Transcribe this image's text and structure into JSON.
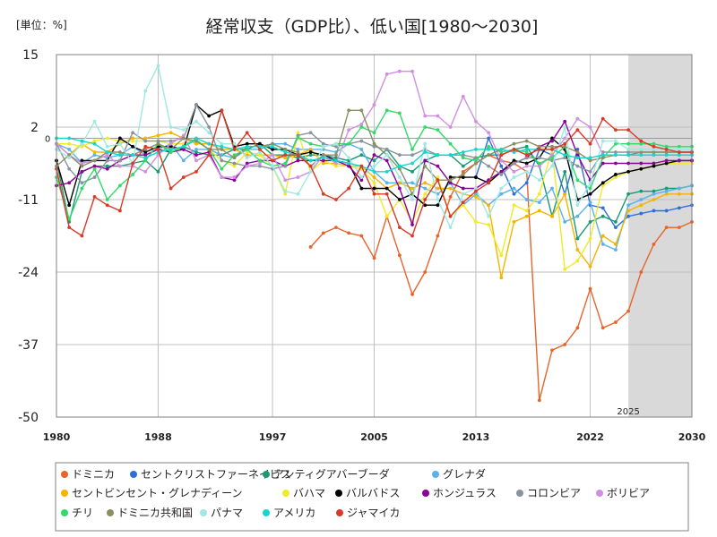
{
  "title": "経常収支（GDP比）、低い国[1980～2030]",
  "unit_label": "[単位：%]",
  "colors": {
    "grid": "#bfbfbf",
    "forecast_shade": "#d9d9d9",
    "zero_line": "#999999"
  },
  "chart_data": {
    "type": "line",
    "title": "経常収支（GDP比）、低い国[1980～2030]",
    "ylabel": "[単位：%]",
    "xlim": [
      1980,
      2030
    ],
    "ylim": [
      -50,
      15
    ],
    "yticks": [
      "15",
      "2",
      "-11",
      "-24",
      "-37",
      "-50"
    ],
    "xticks": [
      "1980",
      "1988",
      "1997",
      "2005",
      "2013",
      "2022",
      "2030"
    ],
    "zero_label": "0",
    "forecast_start": 2025,
    "forecast_label": "2025",
    "legend_position": "bottom",
    "grid": true,
    "series": [
      {
        "name": "ドミニカ",
        "color": "#e8642a",
        "start": 2000,
        "values": [
          -19.5,
          -17,
          -16,
          -17,
          -17.5,
          -21.5,
          -14,
          -21,
          -28,
          -24,
          -17.5,
          -10.5,
          -6,
          -4.5,
          -3,
          -4,
          -4.5,
          -6,
          -47,
          -38,
          -37,
          -34,
          -27,
          -34,
          -33,
          -31,
          -24,
          -19,
          -16,
          -16,
          -15
        ]
      },
      {
        "name": "セントクリストファーネイビス",
        "color": "#2f6fdc",
        "start": 2013,
        "values": [
          -7,
          0,
          -5,
          -10,
          -8,
          -2,
          -3,
          -10,
          -2,
          -12,
          -12.5,
          -16,
          -14,
          -13.5,
          -13,
          -13,
          -12.5,
          -12
        ]
      },
      {
        "name": "アンティグアバーブーダ",
        "color": "#199a72",
        "start": 1980,
        "values": [
          -4,
          -15,
          -6,
          -5,
          -5,
          -5,
          -4.5,
          -4,
          -6,
          -2,
          -1.5,
          -2.5,
          -3,
          -3,
          -2,
          -2,
          -1,
          -3,
          -3,
          -3.5,
          -3,
          -3,
          -3.5,
          -4,
          -3,
          -4,
          -2,
          -5,
          -6,
          -4,
          -3,
          -3,
          -5,
          -3.5,
          -3,
          -3,
          -2,
          -1.5,
          -5,
          -14,
          -6,
          -18,
          -15,
          -14,
          -15,
          -10,
          -9.5,
          -9.5,
          -9,
          -9,
          -8.5
        ]
      },
      {
        "name": "グレナダ",
        "color": "#5ab2e8",
        "start": 1980,
        "values": [
          -1,
          -2,
          -4.5,
          -3,
          -3.5,
          -3,
          -1.5,
          -3,
          -2,
          -1,
          -4,
          -2,
          -2,
          -3,
          -3.5,
          -2,
          -2,
          -1,
          -1,
          -2,
          -2,
          -2,
          -2.5,
          -1,
          -2,
          -6,
          -8,
          -8,
          -8,
          -9,
          -10,
          -8,
          -12,
          -10,
          -12,
          -10,
          -9,
          -11,
          -11.5,
          -9,
          -15,
          -14,
          -11.5,
          -19,
          -20,
          -12,
          -11,
          -10,
          -9.5,
          -9,
          -8.5
        ]
      },
      {
        "name": "セントビンセント・グレナディーン",
        "color": "#f5b400",
        "start": 1980,
        "values": [
          -1,
          -3,
          -1,
          -2.5,
          -2.5,
          -1,
          0,
          0,
          0.5,
          1,
          0,
          -1,
          -1,
          -2,
          -2,
          -3,
          -3,
          -3,
          -3.5,
          -3,
          -2,
          -4.5,
          -4.5,
          -5,
          -5,
          -7,
          -9,
          -8,
          -9,
          -8,
          -9,
          -9,
          -10,
          -10.5,
          -12,
          -25,
          -15,
          -14,
          -13,
          -14,
          -10,
          -20,
          -23,
          -17.5,
          -19,
          -13,
          -12,
          -11,
          -10,
          -10,
          -10
        ]
      },
      {
        "name": "バハマ",
        "color": "#f2ea26",
        "start": 1980,
        "values": [
          -1,
          -1,
          -1.5,
          -0.5,
          0,
          -0.5,
          -0.5,
          -0.5,
          -0.5,
          -1,
          -1,
          -0.5,
          -2,
          -4,
          -5,
          -2.5,
          -3,
          -5,
          -10,
          1,
          -6,
          -4,
          -5,
          -5,
          -5.5,
          -8,
          -14,
          -11,
          -15,
          -10,
          -7,
          -14,
          -12,
          -15,
          -15.5,
          -21,
          -12,
          -13,
          -10,
          -2,
          -23.5,
          -22,
          -18,
          -8.5,
          -7,
          -6,
          -5.5,
          -5,
          -4.5,
          -4.5,
          -4.5
        ]
      },
      {
        "name": "バルバドス",
        "color": "#000000",
        "start": 1980,
        "values": [
          -4,
          -12,
          -4,
          -4,
          -4,
          0,
          -1.5,
          -2.5,
          -1.5,
          -1.5,
          -2,
          6,
          4,
          5,
          -1.5,
          -1,
          -1,
          -2,
          -2,
          -3,
          -2.5,
          -3,
          -4,
          -4.5,
          -9,
          -9,
          -9,
          -11,
          -10,
          -12,
          -12,
          -7,
          -7,
          -7,
          -8,
          -6,
          -4,
          -4.5,
          -3.5,
          0,
          -2,
          -11,
          -10,
          -8,
          -6.5,
          -6,
          -5.5,
          -5,
          -4.5,
          -4,
          -4
        ]
      },
      {
        "name": "ホンジュラス",
        "color": "#8b0099",
        "start": 1980,
        "values": [
          -8.5,
          -8,
          -6,
          -5,
          -5.5,
          -4,
          -3,
          -3,
          -2,
          -2.5,
          -2,
          -3,
          -2.5,
          -7,
          -7.5,
          -4.5,
          -4,
          -4,
          -5,
          -4,
          -4,
          -4,
          -4,
          -5,
          -7.5,
          -3,
          -4,
          -9,
          -15.5,
          -4,
          -5,
          -8,
          -9,
          -9,
          -7.5,
          -6,
          -4.5,
          -3.5,
          -1.5,
          -0.5,
          3,
          -3,
          -7.5,
          -4.5,
          -4.5,
          -4.5,
          -4.5,
          -4.5,
          -4,
          -4,
          -4
        ]
      },
      {
        "name": "コロンビア",
        "color": "#8893a0",
        "start": 1980,
        "values": [
          -1,
          -5.5,
          -8,
          -7,
          -4,
          -4,
          1,
          -0.5,
          -0.5,
          -0.5,
          0,
          6,
          2,
          -4,
          -4.5,
          -5,
          -5,
          -5.5,
          -5,
          0.5,
          1,
          -1,
          -1.5,
          -1,
          -0.5,
          -1.5,
          -2,
          -3,
          -3,
          -2,
          -3,
          -3,
          -3,
          -3.5,
          -5,
          -6.5,
          -4.5,
          -3.5,
          -3.5,
          -4,
          -3.5,
          -5,
          -6,
          -2.5,
          -2.5,
          -2.5,
          -2.5,
          -2.5,
          -2.5,
          -2.5,
          -2.5
        ]
      },
      {
        "name": "ボリビア",
        "color": "#d090e0",
        "start": 1980,
        "values": [
          -1,
          -3,
          -4.5,
          -4,
          -3,
          -5,
          -5,
          -6,
          -3,
          -1,
          0.5,
          -4,
          -3,
          -7,
          -7,
          -5,
          -4.5,
          -3,
          -7.5,
          -7,
          -6,
          -3,
          -4.5,
          1.5,
          2.5,
          6,
          11.5,
          12,
          12,
          4,
          4,
          2,
          7.5,
          3,
          1,
          -4,
          -6,
          -5,
          -5,
          -3,
          0,
          3.5,
          2,
          -3,
          -3,
          -3,
          -3,
          -3,
          -3,
          -3,
          -3
        ]
      },
      {
        "name": "チリ",
        "color": "#33d96a",
        "start": 1980,
        "values": [
          -7,
          -14.5,
          -9,
          -5.5,
          -11,
          -8.5,
          -6.5,
          -4,
          -1,
          -2.5,
          -1.5,
          -0.3,
          -2,
          -5.5,
          -3,
          -2,
          -4,
          -5,
          -4.5,
          0.1,
          -1,
          -1.5,
          -1,
          -1,
          2,
          1,
          5,
          4.5,
          -2,
          2,
          1.5,
          -1,
          -3.5,
          -4,
          -1.5,
          -2.5,
          -2,
          -2.5,
          -4.5,
          -3.5,
          -1.5,
          -7.5,
          -9,
          -3.5,
          -1,
          -1,
          -1,
          -1,
          -1.5,
          -1.5,
          -1.5
        ]
      },
      {
        "name": "ドミニカ共和国",
        "color": "#8c8f62",
        "start": 1980,
        "values": [
          -5,
          -3,
          -5,
          -4,
          -2.5,
          -2.5,
          -3,
          -2,
          -1,
          -2,
          0,
          -0.5,
          -2,
          -2,
          -3.5,
          -1.5,
          -1.5,
          -1,
          -2,
          -2.5,
          -5,
          -3,
          -3,
          5,
          5,
          -1,
          -3,
          -5.5,
          -10,
          -5,
          -7.5,
          -7.5,
          -6.5,
          -4.5,
          -3,
          -2,
          -1,
          -0.5,
          -1.5,
          -1.5,
          -1.5,
          -2.5,
          -4,
          -3.5,
          -3,
          -3,
          -2.5,
          -2.5,
          -2.5,
          -2.5,
          -2.5
        ]
      },
      {
        "name": "パナマ",
        "color": "#9fe8e3",
        "start": 1980,
        "values": [
          -2,
          -3.5,
          -1,
          3,
          -1.5,
          -1,
          -4.5,
          8.5,
          13,
          2,
          1.5,
          3,
          1,
          -1,
          -1,
          -3.5,
          -2.5,
          -5,
          -9.5,
          -10,
          -6,
          -1.5,
          -1,
          -3.5,
          -7,
          -5,
          -3,
          -7,
          -11,
          -1,
          -11,
          -16,
          -10,
          -9,
          -14,
          -9,
          -7,
          -6,
          -7.5,
          -5,
          2,
          -12,
          -8,
          -0.5,
          -0.5,
          -2,
          -2,
          -2,
          -2,
          -2,
          -2
        ]
      },
      {
        "name": "アメリカ",
        "color": "#14d6cc",
        "start": 1980,
        "values": [
          0,
          0,
          -0.5,
          -1,
          -2.5,
          -3,
          -3,
          -3.5,
          -2.5,
          -2,
          -1.5,
          0,
          -1,
          -1.5,
          -2,
          -1.5,
          -1.5,
          -1.5,
          -2.5,
          -3,
          -4,
          -3.5,
          -4,
          -4.5,
          -5,
          -6,
          -6,
          -5,
          -4.5,
          -2.5,
          -3,
          -3,
          -2.5,
          -2,
          -2,
          -2,
          -2.5,
          -2,
          -2,
          -2,
          -3,
          -3.5,
          -3.5,
          -3,
          -3,
          -3,
          -3,
          -3,
          -3,
          -3,
          -3
        ]
      },
      {
        "name": "ジャマイカ",
        "color": "#d93a27",
        "start": 1980,
        "values": [
          -5.5,
          -16,
          -17.5,
          -10.5,
          -12,
          -13,
          -4.5,
          -1.5,
          -2,
          -9,
          -7,
          -6,
          -3,
          5,
          -2,
          1,
          -2,
          -4,
          -3,
          -3,
          -5,
          -10,
          -11,
          -9,
          -5,
          -10,
          -10,
          -16,
          -17.5,
          -11,
          -7.5,
          -14,
          -11.5,
          -9.5,
          -8,
          -3,
          -2,
          -3,
          -2,
          -2,
          -1,
          1.5,
          -1,
          3.5,
          1.5,
          1.5,
          -0.5,
          -1.5,
          -2,
          -2.5,
          -2.5
        ]
      }
    ]
  }
}
